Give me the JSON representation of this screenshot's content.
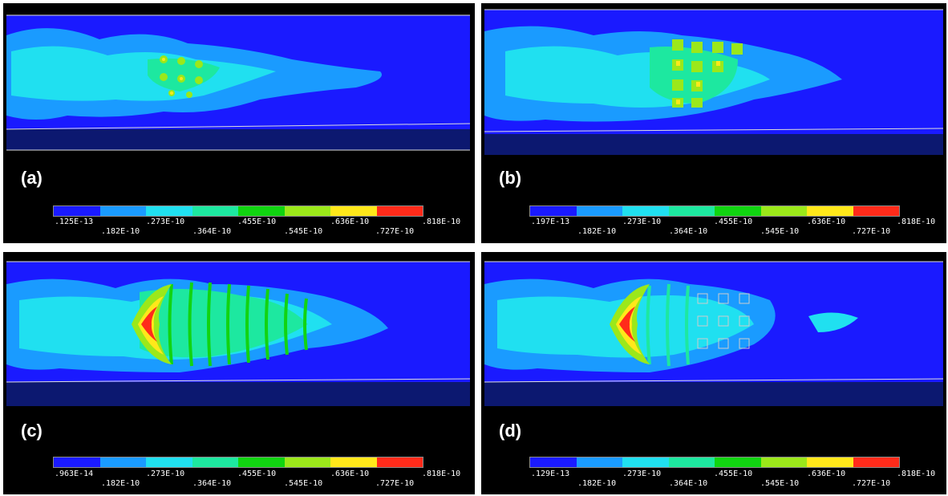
{
  "colors": [
    "#1a1aff",
    "#1a9bff",
    "#20e0f0",
    "#1de8a0",
    "#11d411",
    "#9be81a",
    "#ffe81a",
    "#ff2b1a"
  ],
  "panels": [
    {
      "label": "(a)",
      "ticks_top": [
        ".125E-13",
        ".273E-10",
        ".364E-10",
        ".455E-10",
        ".636E-10",
        ".818E-10"
      ],
      "ticks_bottom": [
        ".182E-10",
        ".364E-10",
        ".545E-10",
        ".727E-10"
      ],
      "ticks_upper": [
        ".125E-13",
        ".273E-10",
        ".455E-10",
        ".636E-10",
        ".818E-10"
      ],
      "ticks_lower": [
        ".182E-10",
        ".364E-10",
        ".545E-10",
        ".727E-10"
      ]
    },
    {
      "label": "(b)",
      "ticks_upper": [
        ".197E-13",
        ".273E-10",
        ".455E-10",
        ".636E-10",
        ".818E-10"
      ],
      "ticks_lower": [
        ".182E-10",
        ".364E-10",
        ".545E-10",
        ".727E-10"
      ]
    },
    {
      "label": "(c)",
      "ticks_upper": [
        ".963E-14",
        ".273E-10",
        ".455E-10",
        ".636E-10",
        ".818E-10"
      ],
      "ticks_lower": [
        ".182E-10",
        ".364E-10",
        ".545E-10",
        ".727E-10"
      ]
    },
    {
      "label": "(d)",
      "ticks_upper": [
        ".129E-13",
        ".273E-10",
        ".455E-10",
        ".636E-10",
        ".818E-10"
      ],
      "ticks_lower": [
        ".182E-10",
        ".364E-10",
        ".545E-10",
        ".727E-10"
      ]
    }
  ]
}
